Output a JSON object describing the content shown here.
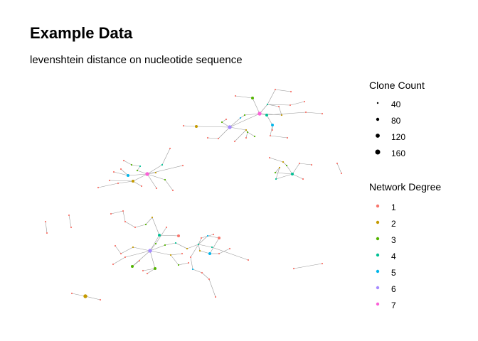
{
  "title": "Example Data",
  "subtitle": "levenshtein distance on nucleotide sequence",
  "legend_size": {
    "title": "Clone Count",
    "items": [
      {
        "label": "40"
      },
      {
        "label": "80"
      },
      {
        "label": "120"
      },
      {
        "label": "160"
      }
    ]
  },
  "legend_degree": {
    "title": "Network Degree",
    "items": [
      {
        "label": "1",
        "color": "#F8766D"
      },
      {
        "label": "2",
        "color": "#C49A00"
      },
      {
        "label": "3",
        "color": "#53B400"
      },
      {
        "label": "4",
        "color": "#00C094"
      },
      {
        "label": "5",
        "color": "#00B6EB"
      },
      {
        "label": "6",
        "color": "#A58AFF"
      },
      {
        "label": "7",
        "color": "#FB61D7"
      }
    ]
  },
  "edge_color": "#9a9a9a"
}
